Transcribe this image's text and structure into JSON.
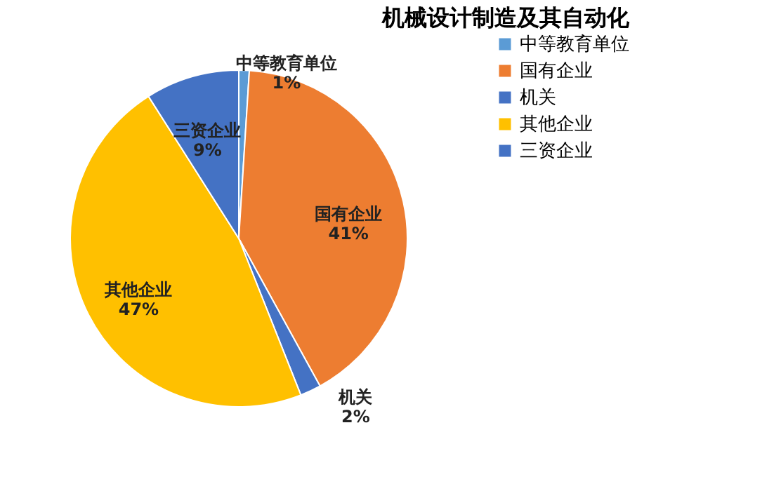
{
  "chart_data": {
    "type": "pie",
    "title": "机械设计制造及其自动化",
    "categories": [
      "中等教育单位",
      "国有企业",
      "机关",
      "其他企业",
      "三资企业"
    ],
    "values": [
      1,
      41,
      2,
      47,
      9
    ],
    "value_labels": [
      "1%",
      "41%",
      "2%",
      "47%",
      "9%"
    ],
    "colors": [
      "#5b9bd5",
      "#ed7d31",
      "#4472c4",
      "#ffc000",
      "#4472c4"
    ],
    "legend": "right"
  }
}
